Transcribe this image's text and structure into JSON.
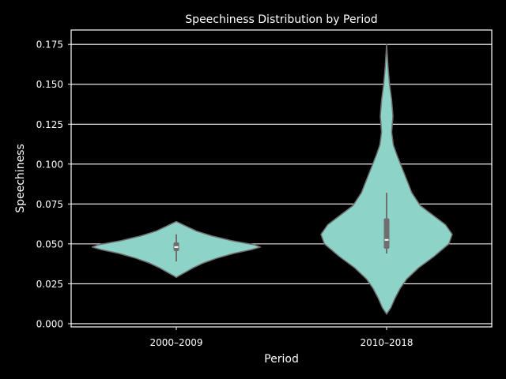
{
  "chart_data": {
    "type": "violin",
    "title": "Speechiness Distribution by Period",
    "xlabel": "Period",
    "ylabel": "Speechiness",
    "ylim": [
      -0.002,
      0.184
    ],
    "yticks": [
      0.0,
      0.025,
      0.05,
      0.075,
      0.1,
      0.125,
      0.15,
      0.175
    ],
    "ytick_labels": [
      "0.000",
      "0.025",
      "0.050",
      "0.075",
      "0.100",
      "0.125",
      "0.150",
      "0.175"
    ],
    "grid": true,
    "categories": [
      "2000–2009",
      "2010–2018"
    ],
    "violins": [
      {
        "category": "2000–2009",
        "y_min": 0.029,
        "y_max": 0.064,
        "q1": 0.0455,
        "median": 0.048,
        "q3": 0.051,
        "whisker_low": 0.039,
        "whisker_high": 0.056,
        "density": [
          [
            0.029,
            0.0
          ],
          [
            0.03,
            0.03
          ],
          [
            0.032,
            0.1
          ],
          [
            0.035,
            0.2
          ],
          [
            0.038,
            0.32
          ],
          [
            0.041,
            0.48
          ],
          [
            0.044,
            0.68
          ],
          [
            0.0465,
            0.9
          ],
          [
            0.048,
            1.0
          ],
          [
            0.0495,
            0.92
          ],
          [
            0.052,
            0.66
          ],
          [
            0.055,
            0.42
          ],
          [
            0.058,
            0.24
          ],
          [
            0.061,
            0.12
          ],
          [
            0.063,
            0.04
          ],
          [
            0.064,
            0.0
          ]
        ]
      },
      {
        "category": "2010–2018",
        "y_min": 0.006,
        "y_max": 0.175,
        "q1": 0.047,
        "median": 0.0525,
        "q3": 0.066,
        "whisker_low": 0.044,
        "whisker_high": 0.082,
        "density": [
          [
            0.006,
            0.0
          ],
          [
            0.01,
            0.05
          ],
          [
            0.016,
            0.1
          ],
          [
            0.022,
            0.16
          ],
          [
            0.028,
            0.24
          ],
          [
            0.035,
            0.38
          ],
          [
            0.042,
            0.56
          ],
          [
            0.05,
            0.74
          ],
          [
            0.056,
            0.78
          ],
          [
            0.062,
            0.7
          ],
          [
            0.068,
            0.55
          ],
          [
            0.074,
            0.4
          ],
          [
            0.082,
            0.3
          ],
          [
            0.09,
            0.24
          ],
          [
            0.098,
            0.18
          ],
          [
            0.106,
            0.12
          ],
          [
            0.112,
            0.08
          ],
          [
            0.12,
            0.06
          ],
          [
            0.13,
            0.075
          ],
          [
            0.14,
            0.06
          ],
          [
            0.15,
            0.035
          ],
          [
            0.16,
            0.018
          ],
          [
            0.17,
            0.006
          ],
          [
            0.175,
            0.0
          ]
        ]
      }
    ],
    "colors": {
      "background": "#000000",
      "foreground": "#ffffff",
      "violin_fill": "#8dd3c7",
      "violin_edge": "#6f6f6f",
      "box": "#6f6f6f",
      "median": "#ffffff",
      "grid": "#ffffff"
    }
  }
}
